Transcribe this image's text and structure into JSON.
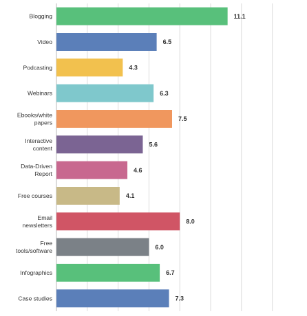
{
  "chart_data": {
    "type": "bar",
    "orientation": "horizontal",
    "title": "",
    "xlabel": "",
    "ylabel": "",
    "xlim": [
      0,
      14
    ],
    "grid": true,
    "legend": "none",
    "categories": [
      "Blogging",
      "Video",
      "Podcasting",
      "Webinars",
      "Ebooks/white papers",
      "Interactive content",
      "Data-Driven Report",
      "Free courses",
      "Email newsletters",
      "Free tools/software",
      "Infographics",
      "Case studies"
    ],
    "category_lines": [
      [
        "Blogging"
      ],
      [
        "Video"
      ],
      [
        "Podcasting"
      ],
      [
        "Webinars"
      ],
      [
        "Ebooks/white",
        "papers"
      ],
      [
        "Interactive",
        "content"
      ],
      [
        "Data-Driven",
        "Report"
      ],
      [
        "Free courses"
      ],
      [
        "Email",
        "newsletters"
      ],
      [
        "Free",
        "tools/software"
      ],
      [
        "Infographics"
      ],
      [
        "Case studies"
      ]
    ],
    "values": [
      11.1,
      6.5,
      4.3,
      6.3,
      7.5,
      5.6,
      4.6,
      4.1,
      8.0,
      6.0,
      6.7,
      7.3
    ],
    "value_labels": [
      "11.1",
      "6.5",
      "4.3",
      "6.3",
      "7.5",
      "5.6",
      "4.6",
      "4.1",
      "8.0",
      "6.0",
      "6.7",
      "7.3"
    ],
    "colors": [
      "#58c07b",
      "#5b7fb9",
      "#f2c14e",
      "#7fc8cc",
      "#f0975e",
      "#7b6493",
      "#c8688f",
      "#c8b987",
      "#d05565",
      "#7b8187",
      "#58c07b",
      "#5b7fb9"
    ],
    "gridline_color": "#dcdcdc"
  }
}
